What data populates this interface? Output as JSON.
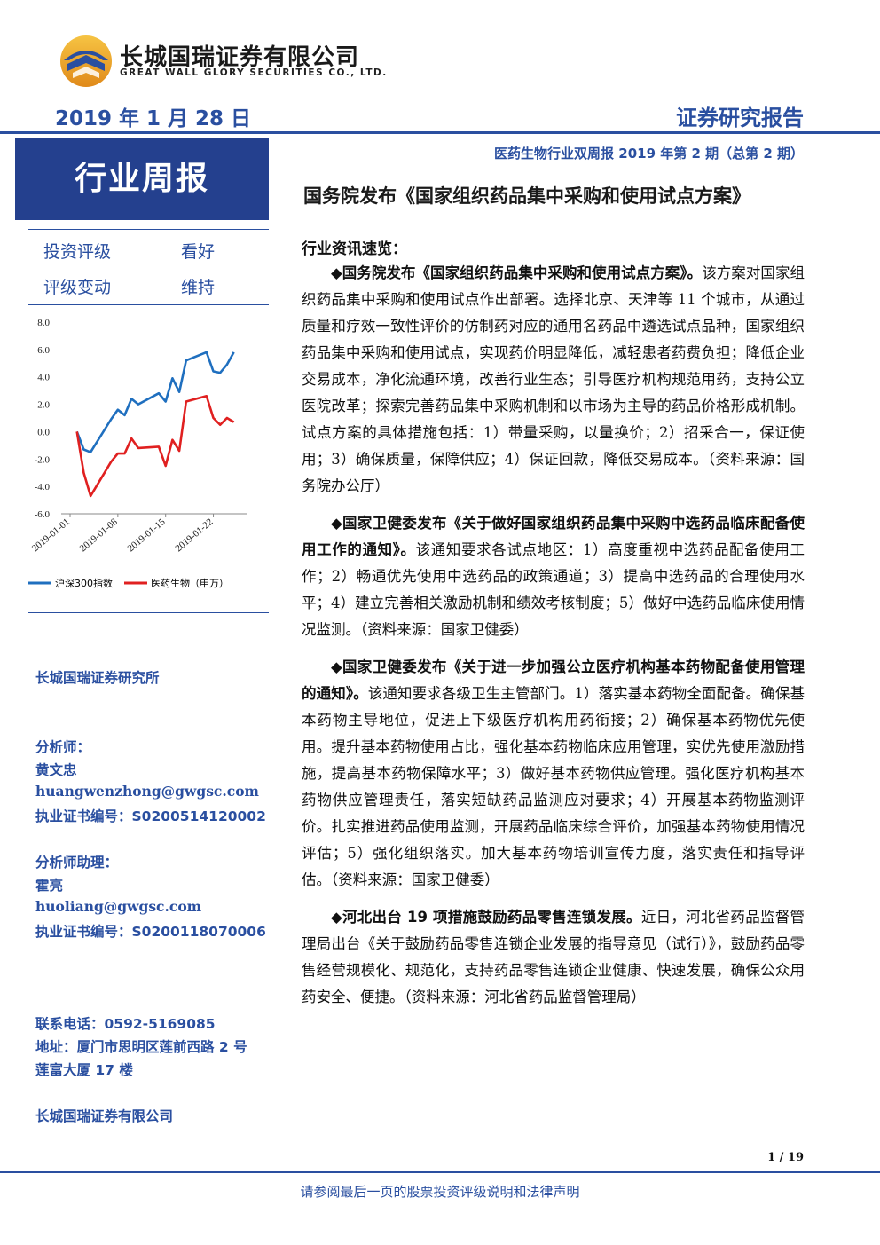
{
  "header": {
    "company_cn": "长城国瑞证券有限公司",
    "company_en": "GREAT WALL GLORY SECURITIES CO., LTD.",
    "date": "2019 年 1 月 28 日",
    "report_type": "证券研究报告",
    "issue": "医药生物行业双周报 2019 年第 2 期（总第 2 期）",
    "weekly": "行业周报"
  },
  "rating": {
    "label1": "投资评级",
    "value1": "看好",
    "label2": "评级变动",
    "value2": "维持"
  },
  "chart_data": {
    "type": "line",
    "x": [
      "2019-01-02",
      "2019-01-03",
      "2019-01-04",
      "2019-01-07",
      "2019-01-08",
      "2019-01-09",
      "2019-01-10",
      "2019-01-11",
      "2019-01-14",
      "2019-01-15",
      "2019-01-16",
      "2019-01-17",
      "2019-01-18",
      "2019-01-21",
      "2019-01-22",
      "2019-01-23",
      "2019-01-24",
      "2019-01-25"
    ],
    "x_ticks": [
      "2019-01-01",
      "2019-01-08",
      "2019-01-15",
      "2019-01-22"
    ],
    "ylim": [
      -6.0,
      8.0
    ],
    "y_ticks": [
      "8.0",
      "6.0",
      "4.0",
      "2.0",
      "0.0",
      "-2.0",
      "-4.0",
      "-6.0"
    ],
    "series": [
      {
        "name": "沪深300指数",
        "color": "#1f6fbf",
        "values": [
          0.0,
          -1.3,
          -1.5,
          0.9,
          1.6,
          1.2,
          2.4,
          2.0,
          2.8,
          2.2,
          3.9,
          2.9,
          5.2,
          5.8,
          4.4,
          4.3,
          4.9,
          5.8
        ]
      },
      {
        "name": "医药生物（申万）",
        "color": "#e02020",
        "values": [
          0.0,
          -3.0,
          -4.7,
          -2.2,
          -1.6,
          -1.6,
          -0.5,
          -1.2,
          -1.1,
          -2.5,
          -0.6,
          -1.4,
          2.2,
          2.6,
          1.0,
          0.5,
          1.0,
          0.7
        ]
      }
    ]
  },
  "sidebar": {
    "institute": "长城国瑞证券研究所",
    "analyst_label": "分析师：",
    "analyst_name": "黄文忠",
    "analyst_email": "huangwenzhong@gwgsc.com",
    "analyst_cert": "执业证书编号：S0200514120002",
    "assistant_label": "分析师助理：",
    "assistant_name": "霍亮",
    "assistant_email": "huoliang@gwgsc.com",
    "assistant_cert": "执业证书编号：S0200118070006",
    "phone": "联系电话：0592-5169085",
    "address1": "地址：厦门市思明区莲前西路 2 号",
    "address2": "莲富大厦 17 楼",
    "company": "长城国瑞证券有限公司"
  },
  "main": {
    "headline": "国务院发布《国家组织药品集中采购和使用试点方案》",
    "section": "行业资讯速览：",
    "items": [
      {
        "title": "◆国务院发布《国家组织药品集中采购和使用试点方案》。",
        "body": "该方案对国家组织药品集中采购和使用试点作出部署。选择北京、天津等 11 个城市，从通过质量和疗效一致性评价的仿制药对应的通用名药品中遴选试点品种，国家组织药品集中采购和使用试点，实现药价明显降低，减轻患者药费负担；降低企业交易成本，净化流通环境，改善行业生态；引导医疗机构规范用药，支持公立医院改革；探索完善药品集中采购机制和以市场为主导的药品价格形成机制。试点方案的具体措施包括：1）带量采购，以量换价；2）招采合一，保证使用；3）确保质量，保障供应；4）保证回款，降低交易成本。（资料来源：国务院办公厅）"
      },
      {
        "title": "◆国家卫健委发布《关于做好国家组织药品集中采购中选药品临床配备使用工作的通知》。",
        "body": "该通知要求各试点地区：1）高度重视中选药品配备使用工作；2）畅通优先使用中选药品的政策通道；3）提高中选药品的合理使用水平；4）建立完善相关激励机制和绩效考核制度；5）做好中选药品临床使用情况监测。（资料来源：国家卫健委）"
      },
      {
        "title": "◆国家卫健委发布《关于进一步加强公立医疗机构基本药物配备使用管理的通知》。",
        "body": "该通知要求各级卫生主管部门。1）落实基本药物全面配备。确保基本药物主导地位，促进上下级医疗机构用药衔接；2）确保基本药物优先使用。提升基本药物使用占比，强化基本药物临床应用管理，实优先使用激励措施，提高基本药物保障水平；3）做好基本药物供应管理。强化医疗机构基本药物供应管理责任，落实短缺药品监测应对要求；4）开展基本药物监测评价。扎实推进药品使用监测，开展药品临床综合评价，加强基本药物使用情况评估；5）强化组织落实。加大基本药物培训宣传力度，落实责任和指导评估。（资料来源：国家卫健委）"
      },
      {
        "title": "◆河北出台 19 项措施鼓励药品零售连锁发展。",
        "body": "近日，河北省药品监督管理局出台《关于鼓励药品零售连锁企业发展的指导意见（试行）》，鼓励药品零售经营规模化、规范化，支持药品零售连锁企业健康、快速发展，确保公众用药安全、便捷。（资料来源：河北省药品监督管理局）"
      }
    ]
  },
  "footer": {
    "page": "1 / 19",
    "disclaimer": "请参阅最后一页的股票投资评级说明和法律声明"
  }
}
